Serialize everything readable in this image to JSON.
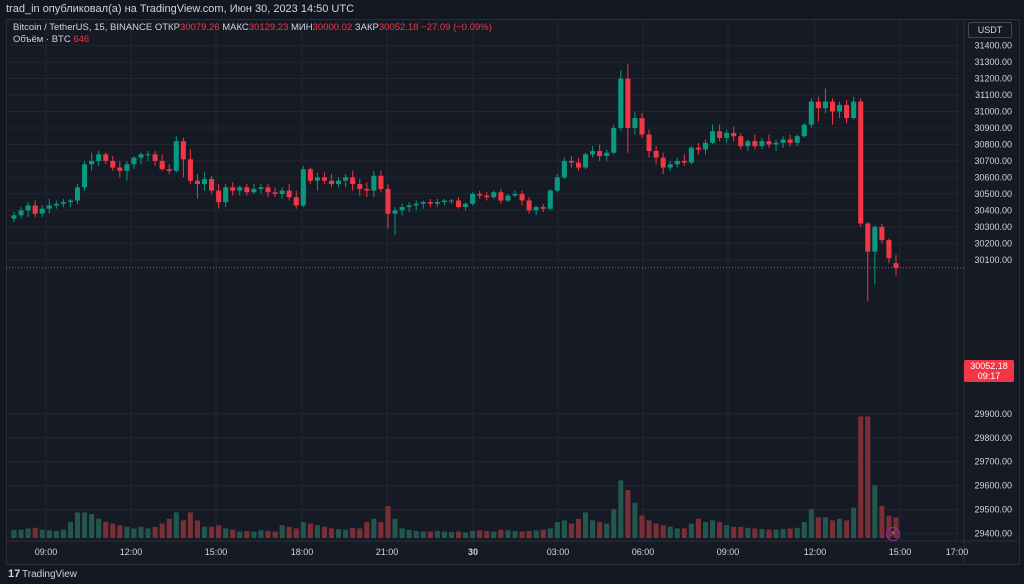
{
  "header": {
    "published_by": "trad_in опубликовал(а) на TradingView.com, Июн 30, 2023 14:50 UTC"
  },
  "legend": {
    "symbol": "Bitcoin / TetherUS, 15, BINANCE",
    "open_label": "ОТКР",
    "open_value": "30079.26",
    "high_label": "МАКС",
    "high_value": "30129.23",
    "low_label": "МИН",
    "low_value": "30000.02",
    "close_label": "ЗАКР",
    "close_value": "30052.18",
    "change": "−27.09 (−0.09%)",
    "volume_label": "Объём · BTC",
    "volume_value": "646"
  },
  "price_scale": {
    "currency": "USDT",
    "ticks": [
      "31400.00",
      "31300.00",
      "31200.00",
      "31100.00",
      "31000.00",
      "30900.00",
      "30800.00",
      "30700.00",
      "30600.00",
      "30500.00",
      "30400.00",
      "30300.00",
      "30200.00",
      "30100.00",
      "29900.00",
      "29800.00",
      "29700.00",
      "29600.00",
      "29500.00",
      "29400.00"
    ],
    "last_price": "30052.18",
    "countdown": "09:17"
  },
  "time_scale": {
    "ticks": [
      "09:00",
      "12:00",
      "15:00",
      "18:00",
      "21:00",
      "30",
      "03:00",
      "06:00",
      "09:00",
      "12:00",
      "15:00",
      "17:00"
    ]
  },
  "footer": {
    "brand": "TradingView",
    "logo_glyph": "17"
  },
  "colors": {
    "background": "#131722",
    "up": "#089981",
    "down": "#f23645",
    "volume_up": "#22574f",
    "volume_down": "#7a2e36",
    "grid": "#22262f"
  },
  "chart_data": {
    "type": "candlestick",
    "title": "Bitcoin / TetherUS, 15, BINANCE",
    "x_ticks": [
      "09:00",
      "12:00",
      "15:00",
      "18:00",
      "21:00",
      "30",
      "03:00",
      "06:00",
      "09:00",
      "12:00",
      "15:00",
      "17:00"
    ],
    "y_range": [
      29310,
      31440
    ],
    "volume_max_reference": 4000,
    "candles": [
      [
        30350,
        30390,
        30330,
        30370,
        250
      ],
      [
        30370,
        30420,
        30350,
        30400,
        260
      ],
      [
        30400,
        30450,
        30360,
        30430,
        300
      ],
      [
        30430,
        30460,
        30360,
        30380,
        320
      ],
      [
        30380,
        30430,
        30360,
        30410,
        260
      ],
      [
        30410,
        30470,
        30380,
        30430,
        240
      ],
      [
        30430,
        30460,
        30410,
        30440,
        220
      ],
      [
        30440,
        30470,
        30420,
        30450,
        260
      ],
      [
        30450,
        30470,
        30420,
        30460,
        500
      ],
      [
        30460,
        30560,
        30440,
        30540,
        800
      ],
      [
        30540,
        30700,
        30520,
        30680,
        800
      ],
      [
        30680,
        30750,
        30640,
        30700,
        750
      ],
      [
        30700,
        30760,
        30670,
        30740,
        600
      ],
      [
        30740,
        30750,
        30680,
        30700,
        500
      ],
      [
        30700,
        30730,
        30640,
        30660,
        450
      ],
      [
        30660,
        30700,
        30600,
        30640,
        400
      ],
      [
        30640,
        30700,
        30580,
        30680,
        350
      ],
      [
        30680,
        30730,
        30650,
        30720,
        300
      ],
      [
        30720,
        30750,
        30680,
        30740,
        350
      ],
      [
        30740,
        30760,
        30700,
        30740,
        300
      ],
      [
        30740,
        30760,
        30670,
        30700,
        350
      ],
      [
        30700,
        30740,
        30640,
        30650,
        450
      ],
      [
        30650,
        30680,
        30620,
        30640,
        600
      ],
      [
        30640,
        30850,
        30630,
        30820,
        800
      ],
      [
        30820,
        30840,
        30600,
        30710,
        550
      ],
      [
        30710,
        30770,
        30560,
        30580,
        800
      ],
      [
        30580,
        30620,
        30470,
        30560,
        550
      ],
      [
        30560,
        30630,
        30520,
        30590,
        350
      ],
      [
        30590,
        30610,
        30500,
        30520,
        350
      ],
      [
        30520,
        30560,
        30410,
        30450,
        400
      ],
      [
        30450,
        30560,
        30420,
        30540,
        300
      ],
      [
        30540,
        30570,
        30490,
        30520,
        260
      ],
      [
        30520,
        30550,
        30490,
        30540,
        200
      ],
      [
        30540,
        30560,
        30490,
        30510,
        220
      ],
      [
        30510,
        30560,
        30500,
        30530,
        200
      ],
      [
        30530,
        30560,
        30500,
        30540,
        240
      ],
      [
        30540,
        30560,
        30480,
        30510,
        220
      ],
      [
        30510,
        30540,
        30480,
        30500,
        200
      ],
      [
        30500,
        30540,
        30470,
        30520,
        400
      ],
      [
        30520,
        30560,
        30460,
        30480,
        350
      ],
      [
        30480,
        30520,
        30410,
        30430,
        300
      ],
      [
        30430,
        30670,
        30420,
        30650,
        500
      ],
      [
        30650,
        30660,
        30560,
        30580,
        450
      ],
      [
        30580,
        30630,
        30520,
        30600,
        400
      ],
      [
        30600,
        30630,
        30560,
        30580,
        350
      ],
      [
        30580,
        30620,
        30540,
        30560,
        300
      ],
      [
        30560,
        30600,
        30540,
        30580,
        280
      ],
      [
        30580,
        30620,
        30540,
        30600,
        260
      ],
      [
        30600,
        30640,
        30520,
        30560,
        320
      ],
      [
        30560,
        30590,
        30490,
        30530,
        300
      ],
      [
        30530,
        30570,
        30480,
        30520,
        500
      ],
      [
        30520,
        30640,
        30480,
        30610,
        600
      ],
      [
        30610,
        30640,
        30510,
        30530,
        500
      ],
      [
        30530,
        30560,
        30290,
        30380,
        1000
      ],
      [
        30380,
        30420,
        30250,
        30400,
        600
      ],
      [
        30400,
        30440,
        30370,
        30420,
        300
      ],
      [
        30420,
        30450,
        30390,
        30430,
        250
      ],
      [
        30430,
        30460,
        30400,
        30440,
        220
      ],
      [
        30440,
        30460,
        30410,
        30450,
        200
      ],
      [
        30450,
        30470,
        30420,
        30440,
        200
      ],
      [
        30440,
        30470,
        30420,
        30450,
        220
      ],
      [
        30450,
        30470,
        30430,
        30460,
        200
      ],
      [
        30460,
        30470,
        30440,
        30460,
        180
      ],
      [
        30460,
        30480,
        30410,
        30420,
        200
      ],
      [
        30420,
        30450,
        30400,
        30440,
        180
      ],
      [
        30440,
        30510,
        30430,
        30500,
        220
      ],
      [
        30500,
        30520,
        30470,
        30490,
        240
      ],
      [
        30490,
        30510,
        30460,
        30480,
        220
      ],
      [
        30480,
        30520,
        30470,
        30510,
        200
      ],
      [
        30510,
        30530,
        30440,
        30460,
        260
      ],
      [
        30460,
        30500,
        30450,
        30490,
        240
      ],
      [
        30490,
        30520,
        30480,
        30500,
        220
      ],
      [
        30500,
        30520,
        30430,
        30460,
        200
      ],
      [
        30460,
        30480,
        30380,
        30400,
        220
      ],
      [
        30400,
        30430,
        30370,
        30420,
        240
      ],
      [
        30420,
        30440,
        30390,
        30410,
        260
      ],
      [
        30410,
        30530,
        30400,
        30520,
        300
      ],
      [
        30520,
        30620,
        30510,
        30600,
        500
      ],
      [
        30600,
        30720,
        30590,
        30700,
        550
      ],
      [
        30700,
        30730,
        30660,
        30690,
        450
      ],
      [
        30690,
        30720,
        30640,
        30660,
        600
      ],
      [
        30660,
        30750,
        30650,
        30740,
        800
      ],
      [
        30740,
        30790,
        30720,
        30760,
        550
      ],
      [
        30760,
        30800,
        30700,
        30730,
        500
      ],
      [
        30730,
        30770,
        30700,
        30750,
        450
      ],
      [
        30750,
        30920,
        30740,
        30900,
        900
      ],
      [
        30900,
        31250,
        30880,
        31200,
        1800
      ],
      [
        31200,
        31290,
        30750,
        30900,
        1500
      ],
      [
        30900,
        31000,
        30860,
        30960,
        1100
      ],
      [
        30960,
        30990,
        30840,
        30860,
        700
      ],
      [
        30860,
        30890,
        30720,
        30760,
        550
      ],
      [
        30760,
        30790,
        30680,
        30720,
        450
      ],
      [
        30720,
        30750,
        30620,
        30660,
        400
      ],
      [
        30660,
        30700,
        30640,
        30680,
        350
      ],
      [
        30680,
        30720,
        30660,
        30700,
        300
      ],
      [
        30700,
        30740,
        30670,
        30690,
        300
      ],
      [
        30690,
        30790,
        30680,
        30780,
        450
      ],
      [
        30780,
        30810,
        30740,
        30770,
        600
      ],
      [
        30770,
        30830,
        30740,
        30810,
        500
      ],
      [
        30810,
        30920,
        30800,
        30880,
        550
      ],
      [
        30880,
        30920,
        30820,
        30840,
        500
      ],
      [
        30840,
        30890,
        30810,
        30870,
        400
      ],
      [
        30870,
        30910,
        30820,
        30850,
        350
      ],
      [
        30850,
        30870,
        30770,
        30790,
        350
      ],
      [
        30790,
        30830,
        30760,
        30820,
        320
      ],
      [
        30820,
        30860,
        30770,
        30790,
        300
      ],
      [
        30790,
        30840,
        30770,
        30820,
        280
      ],
      [
        30820,
        30860,
        30780,
        30800,
        260
      ],
      [
        30800,
        30830,
        30760,
        30810,
        260
      ],
      [
        30810,
        30850,
        30780,
        30830,
        280
      ],
      [
        30830,
        30860,
        30790,
        30810,
        300
      ],
      [
        30810,
        30860,
        30790,
        30850,
        320
      ],
      [
        30850,
        30930,
        30840,
        30920,
        500
      ],
      [
        30920,
        31080,
        30900,
        31060,
        900
      ],
      [
        31060,
        31090,
        30940,
        31020,
        650
      ],
      [
        31020,
        31140,
        30990,
        31060,
        650
      ],
      [
        31060,
        31080,
        30920,
        31000,
        550
      ],
      [
        31000,
        31060,
        30960,
        31040,
        600
      ],
      [
        31040,
        31070,
        30930,
        30960,
        550
      ],
      [
        30960,
        31090,
        30950,
        31060,
        950
      ],
      [
        31060,
        31080,
        30300,
        30320,
        3800
      ],
      [
        30320,
        30330,
        29850,
        30150,
        3800
      ],
      [
        30150,
        30310,
        29950,
        30300,
        1650
      ],
      [
        30300,
        30320,
        30200,
        30220,
        1000
      ],
      [
        30220,
        30230,
        30080,
        30110,
        700
      ],
      [
        30079.26,
        30129.23,
        30000.02,
        30052.18,
        646
      ]
    ]
  }
}
